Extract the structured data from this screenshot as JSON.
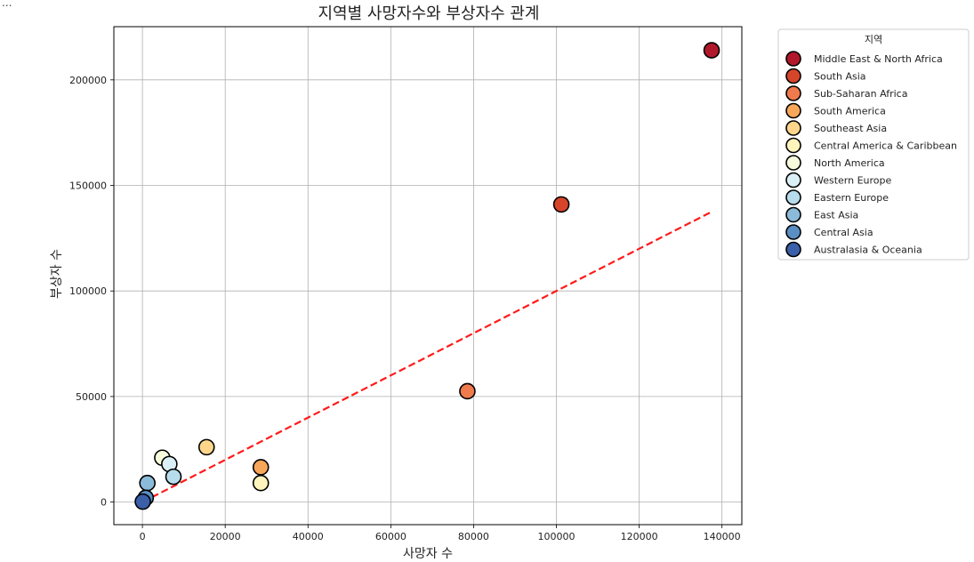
{
  "page": {
    "ellipsis": "..."
  },
  "chart_data": {
    "type": "scatter",
    "title": "지역별 사망자수와 부상자수 관계",
    "xlabel": "사망자 수",
    "ylabel": "부상자 수",
    "xlim": [
      -6900,
      144800
    ],
    "ylim": [
      -10700,
      225200
    ],
    "xticks": [
      0,
      20000,
      40000,
      60000,
      80000,
      100000,
      120000,
      140000
    ],
    "yticks": [
      0,
      50000,
      100000,
      150000,
      200000
    ],
    "grid": true,
    "legend": {
      "title": "지역",
      "placement": "outside-right"
    },
    "colors": {
      "trendline": "#ff1a1a",
      "marker_edge": "#000000",
      "grid": "#b0b0b0"
    },
    "series": [
      {
        "name": "Middle East & North Africa",
        "color": "#b2182b",
        "points": [
          {
            "x": 137500,
            "y": 214000
          }
        ]
      },
      {
        "name": "South Asia",
        "color": "#d6452a",
        "points": [
          {
            "x": 101200,
            "y": 141000
          }
        ]
      },
      {
        "name": "Sub-Saharan Africa",
        "color": "#ef7a4d",
        "points": [
          {
            "x": 78500,
            "y": 52500
          }
        ]
      },
      {
        "name": "South America",
        "color": "#f7a759",
        "points": [
          {
            "x": 28600,
            "y": 16500
          }
        ]
      },
      {
        "name": "Southeast Asia",
        "color": "#fdd68b",
        "points": [
          {
            "x": 15500,
            "y": 26000
          }
        ]
      },
      {
        "name": "Central America & Caribbean",
        "color": "#fef5bd",
        "points": [
          {
            "x": 28600,
            "y": 9000
          }
        ]
      },
      {
        "name": "North America",
        "color": "#f7fbdc",
        "points": [
          {
            "x": 4800,
            "y": 21000
          }
        ]
      },
      {
        "name": "Western Europe",
        "color": "#dbeff6",
        "points": [
          {
            "x": 6500,
            "y": 18000
          }
        ]
      },
      {
        "name": "Eastern Europe",
        "color": "#b7dcec",
        "points": [
          {
            "x": 7500,
            "y": 12000
          }
        ]
      },
      {
        "name": "East Asia",
        "color": "#8bbbd9",
        "points": [
          {
            "x": 1200,
            "y": 9000
          }
        ]
      },
      {
        "name": "Central Asia",
        "color": "#5a8fc3",
        "points": [
          {
            "x": 800,
            "y": 2000
          }
        ]
      },
      {
        "name": "Australasia & Oceania",
        "color": "#3b5fa8",
        "points": [
          {
            "x": 100,
            "y": 200
          }
        ]
      }
    ],
    "trendline": {
      "style": "dashed",
      "points": [
        {
          "x": 0,
          "y": 0
        },
        {
          "x": 137500,
          "y": 137500
        }
      ]
    }
  }
}
